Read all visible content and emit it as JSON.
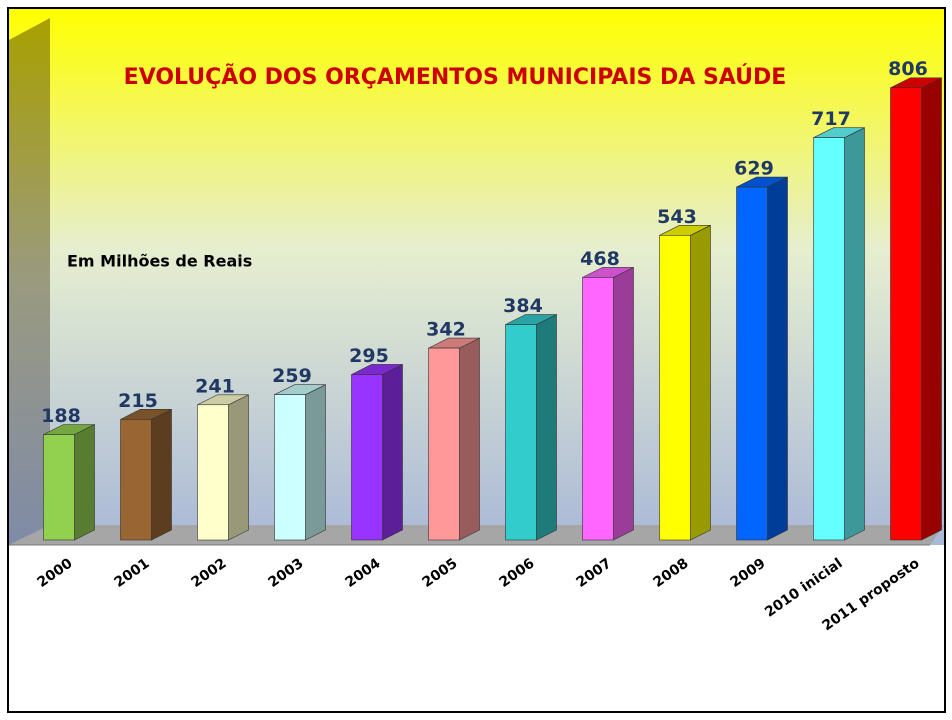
{
  "chart_data": {
    "type": "bar3d",
    "title": "EVOLUÇÃO DOS ORÇAMENTOS MUNICIPAIS DA SAÚDE",
    "subtitle": "Em Milhões de Reais",
    "categories": [
      "2000",
      "2001",
      "2002",
      "2003",
      "2004",
      "2005",
      "2006",
      "2007",
      "2008",
      "2009",
      "2010 inicial",
      "2011 proposto"
    ],
    "values": [
      188,
      215,
      241,
      259,
      295,
      342,
      384,
      468,
      543,
      629,
      717,
      806
    ],
    "colors": [
      "#92d050",
      "#996633",
      "#ffffcc",
      "#ccffff",
      "#9933ff",
      "#ff9999",
      "#33cccc",
      "#ff66ff",
      "#ffff00",
      "#0066ff",
      "#66ffff",
      "#ff0000"
    ],
    "ylim": [
      0,
      900
    ]
  }
}
